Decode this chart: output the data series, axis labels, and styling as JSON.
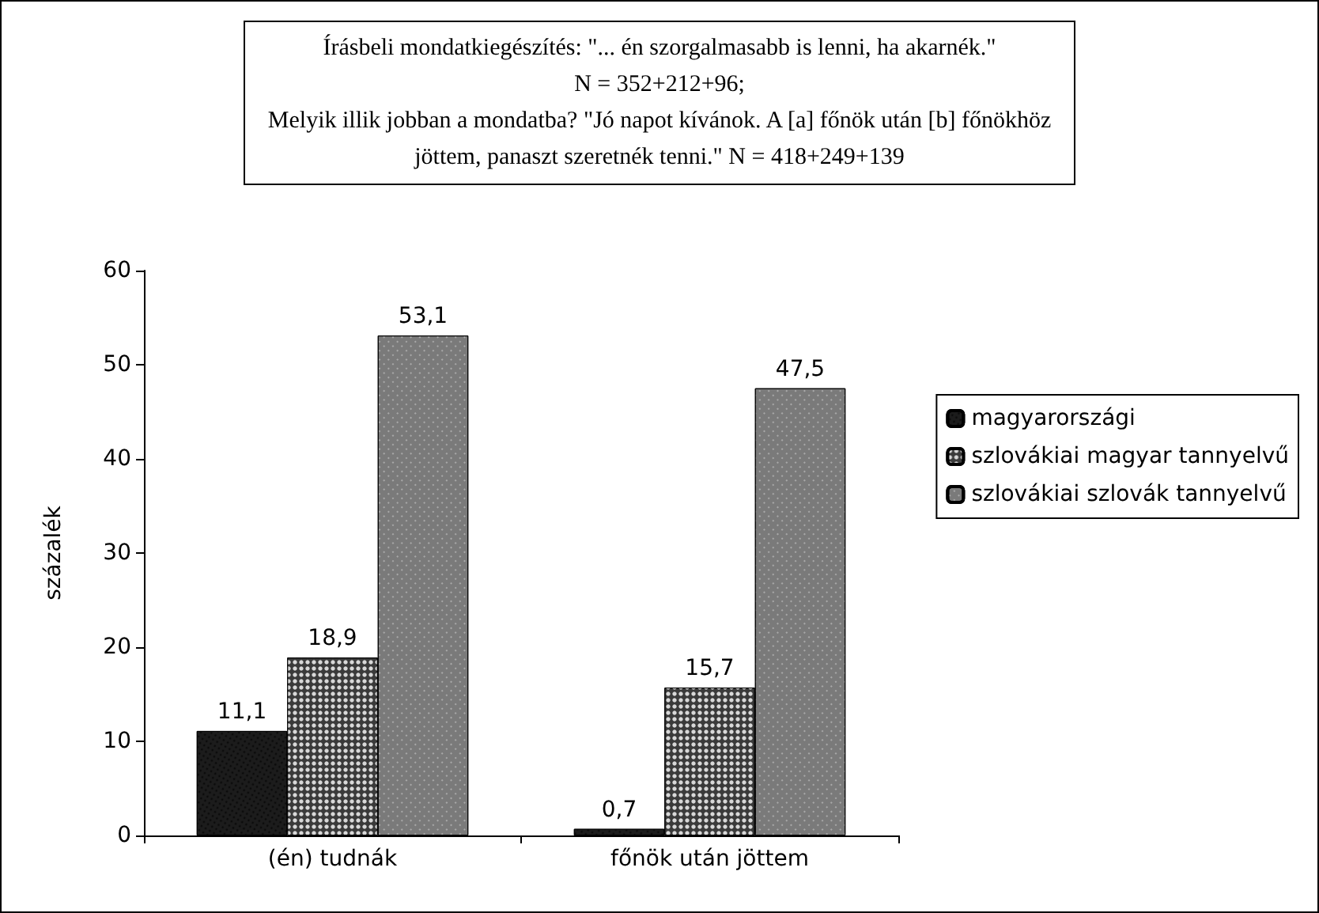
{
  "chart_data": {
    "type": "bar",
    "title": "Írásbeli mondatkiegészítés: \"... én szorgalmasabb is lenni, ha akarnék.\"\nN = 352+212+96;\nMelyik illik jobban a mondatba? \"Jó napot kívánok. A [a] főnök után [b] főnökhöz\njöttem, panaszt szeretnék tenni.\" N = 418+249+139",
    "ylabel": "százalék",
    "categories": [
      "(én) tudnák",
      "főnök után jöttem"
    ],
    "series": [
      {
        "name": "magyarországi",
        "color": "#1c1c1c",
        "values": [
          11.1,
          0.7
        ],
        "value_labels": [
          "11,1",
          "0,7"
        ]
      },
      {
        "name": "szlovákiai magyar tannyelvű",
        "color": "#3a3a3a",
        "values": [
          18.9,
          15.7
        ],
        "value_labels": [
          "18,9",
          "15,7"
        ]
      },
      {
        "name": "szlovákiai szlovák tannyelvű",
        "color": "#7a7a7a",
        "values": [
          53.1,
          47.5
        ],
        "value_labels": [
          "53,1",
          "47,5"
        ]
      }
    ],
    "ylim": [
      0,
      60
    ],
    "yticks": [
      0,
      10,
      20,
      30,
      40,
      50,
      60
    ],
    "grid": false,
    "legend": "right"
  }
}
